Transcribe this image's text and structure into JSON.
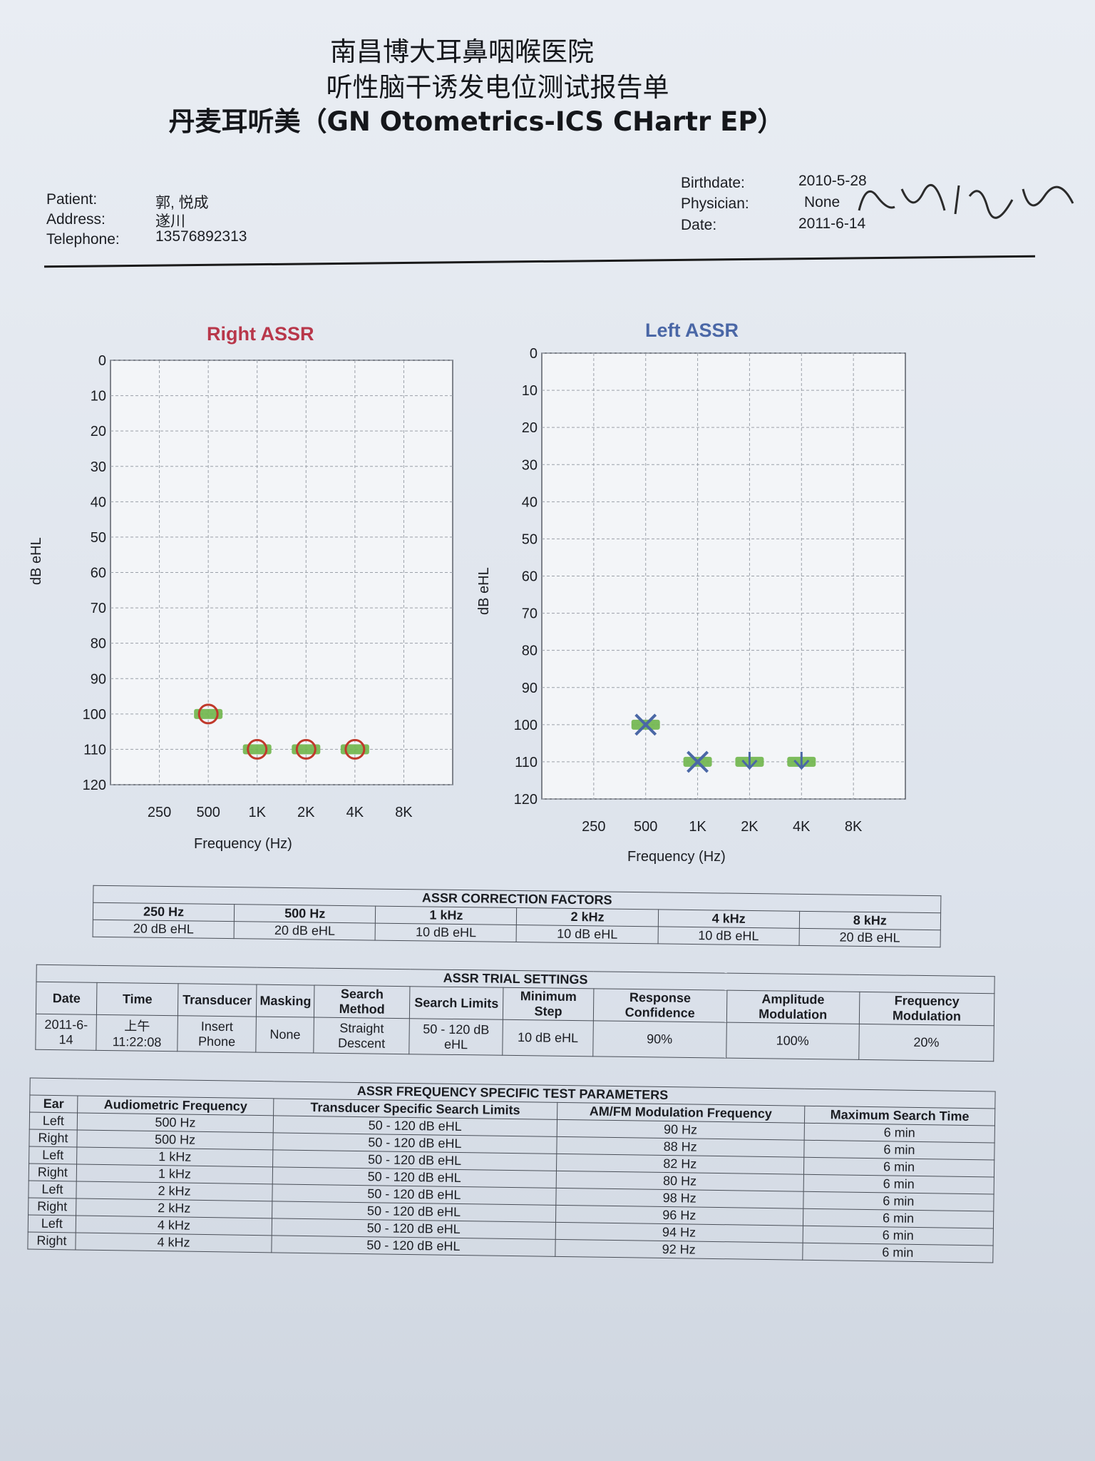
{
  "titles": {
    "hospital": "南昌博大耳鼻咽喉医院",
    "report": "听性脑干诱发电位测试报告单",
    "device": "丹麦耳听美（GN Otometrics-ICS CHartr EP）"
  },
  "patient": {
    "patient_label": "Patient:",
    "patient_value": "郭, 悦成",
    "address_label": "Address:",
    "address_value": "遂川",
    "telephone_label": "Telephone:",
    "telephone_value": "13576892313",
    "birthdate_label": "Birthdate:",
    "birthdate_value": "2010-5-28",
    "physician_label": "Physician:",
    "physician_value": "None",
    "date_label": "Date:",
    "date_value": "2011-6-14"
  },
  "chart_data": [
    {
      "type": "scatter",
      "title": "Right ASSR",
      "xlabel": "Frequency (Hz)",
      "ylabel": "dB eHL",
      "x_ticks": [
        "250",
        "500",
        "1K",
        "2K",
        "4K",
        "8K"
      ],
      "y_ticks": [
        0,
        10,
        20,
        30,
        40,
        50,
        60,
        70,
        80,
        90,
        100,
        110,
        120
      ],
      "ylim": [
        0,
        120
      ],
      "y_inverted": true,
      "grid": true,
      "color": "#c0392b",
      "points": [
        {
          "x": "500",
          "y": 100,
          "marker": "circle"
        },
        {
          "x": "1K",
          "y": 110,
          "marker": "circle"
        },
        {
          "x": "2K",
          "y": 110,
          "marker": "circle"
        },
        {
          "x": "4K",
          "y": 110,
          "marker": "circle"
        }
      ]
    },
    {
      "type": "scatter",
      "title": "Left ASSR",
      "xlabel": "Frequency (Hz)",
      "ylabel": "dB eHL",
      "x_ticks": [
        "250",
        "500",
        "1K",
        "2K",
        "4K",
        "8K"
      ],
      "y_ticks": [
        0,
        10,
        20,
        30,
        40,
        50,
        60,
        70,
        80,
        90,
        100,
        110,
        120
      ],
      "ylim": [
        0,
        120
      ],
      "y_inverted": true,
      "grid": true,
      "color": "#4a67a6",
      "points": [
        {
          "x": "500",
          "y": 100,
          "marker": "x"
        },
        {
          "x": "1K",
          "y": 110,
          "marker": "x"
        },
        {
          "x": "2K",
          "y": 110,
          "marker": "arrow"
        },
        {
          "x": "4K",
          "y": 110,
          "marker": "arrow"
        }
      ]
    }
  ],
  "correction": {
    "caption": "ASSR CORRECTION FACTORS",
    "freqs": [
      "250 Hz",
      "500 Hz",
      "1 kHz",
      "2 kHz",
      "4 kHz",
      "8 kHz"
    ],
    "values": [
      "20 dB eHL",
      "20 dB eHL",
      "10 dB eHL",
      "10 dB eHL",
      "10 dB eHL",
      "20 dB eHL"
    ]
  },
  "trial": {
    "caption": "ASSR TRIAL SETTINGS",
    "headers": [
      "Date",
      "Time",
      "Transducer",
      "Masking",
      "Search Method",
      "Search Limits",
      "Minimum Step",
      "Response Confidence",
      "Amplitude Modulation",
      "Frequency Modulation"
    ],
    "values": [
      "2011-6-14",
      "上午 11:22:08",
      "Insert Phone",
      "None",
      "Straight Descent",
      "50 - 120 dB eHL",
      "10 dB eHL",
      "90%",
      "100%",
      "20%"
    ]
  },
  "params": {
    "caption": "ASSR FREQUENCY SPECIFIC TEST PARAMETERS",
    "headers": [
      "Ear",
      "Audiometric Frequency",
      "Transducer Specific Search Limits",
      "AM/FM Modulation Frequency",
      "Maximum Search Time"
    ],
    "rows": [
      [
        "Left",
        "500 Hz",
        "50 - 120 dB eHL",
        "90 Hz",
        "6 min"
      ],
      [
        "Right",
        "500 Hz",
        "50 - 120 dB eHL",
        "88 Hz",
        "6 min"
      ],
      [
        "Left",
        "1 kHz",
        "50 - 120 dB eHL",
        "82 Hz",
        "6 min"
      ],
      [
        "Right",
        "1 kHz",
        "50 - 120 dB eHL",
        "80 Hz",
        "6 min"
      ],
      [
        "Left",
        "2 kHz",
        "50 - 120 dB eHL",
        "98 Hz",
        "6 min"
      ],
      [
        "Right",
        "2 kHz",
        "50 - 120 dB eHL",
        "96 Hz",
        "6 min"
      ],
      [
        "Left",
        "4 kHz",
        "50 - 120 dB eHL",
        "94 Hz",
        "6 min"
      ],
      [
        "Right",
        "4 kHz",
        "50 - 120 dB eHL",
        "92 Hz",
        "6 min"
      ]
    ]
  }
}
